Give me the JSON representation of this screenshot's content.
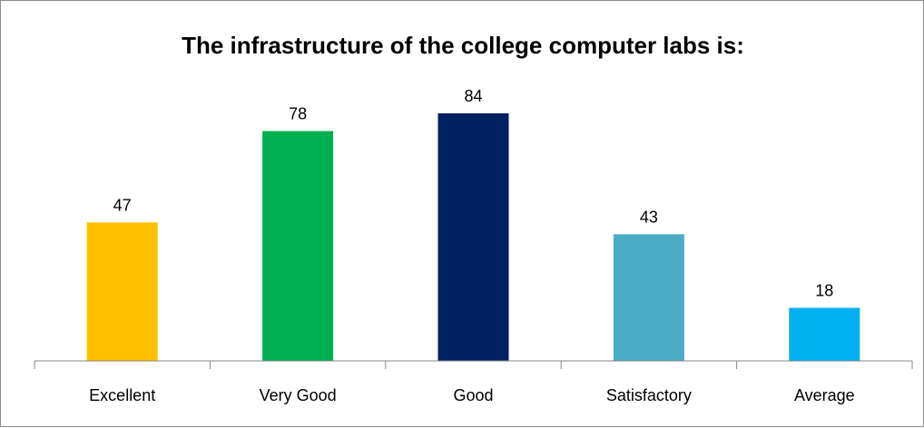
{
  "chart_data": {
    "type": "bar",
    "title": "The infrastructure of the college computer labs is:",
    "categories": [
      "Excellent",
      "Very Good",
      "Good",
      "Satisfactory",
      "Average"
    ],
    "values": [
      47,
      78,
      84,
      43,
      18
    ],
    "colors": [
      "#FFC000",
      "#00B050",
      "#002060",
      "#4BACC6",
      "#00B0F0"
    ],
    "axis_color": "#868686",
    "xlabel": "",
    "ylabel": "",
    "ylim": [
      0,
      98
    ],
    "grid": false,
    "legend": "none",
    "data_labels": true
  }
}
